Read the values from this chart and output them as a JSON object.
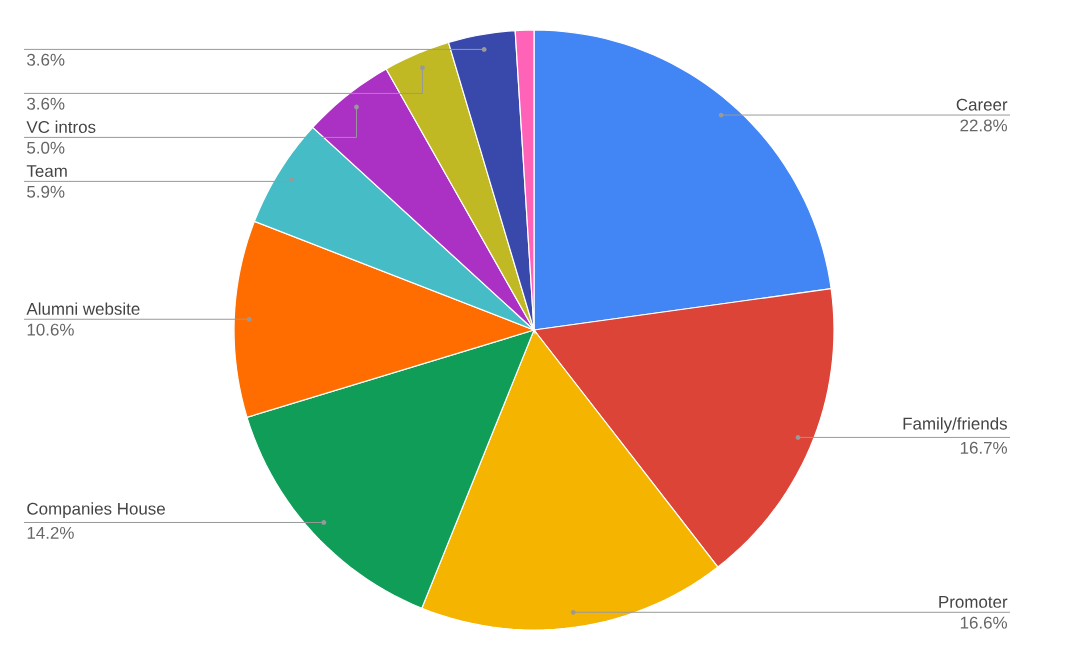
{
  "chart_data": {
    "type": "pie",
    "categories": [
      "Career",
      "Family/friends",
      "Promoter",
      "Companies House",
      "Alumni website",
      "Team",
      "VC intros",
      null,
      null,
      null
    ],
    "values": [
      22.8,
      16.7,
      16.6,
      14.2,
      10.6,
      5.9,
      5.0,
      3.6,
      3.6,
      1.0
    ],
    "value_labels": [
      "22.8%",
      "16.7%",
      "16.6%",
      "14.2%",
      "10.6%",
      "5.9%",
      "5.0%",
      "3.6%",
      "3.6%",
      null
    ],
    "colors": [
      "#4285f4",
      "#db4437",
      "#f4b400",
      "#0f9d58",
      "#ff6d00",
      "#46bdc6",
      "#ab30c4",
      "#c0b923",
      "#3949ab",
      "#ff63b8"
    ]
  }
}
